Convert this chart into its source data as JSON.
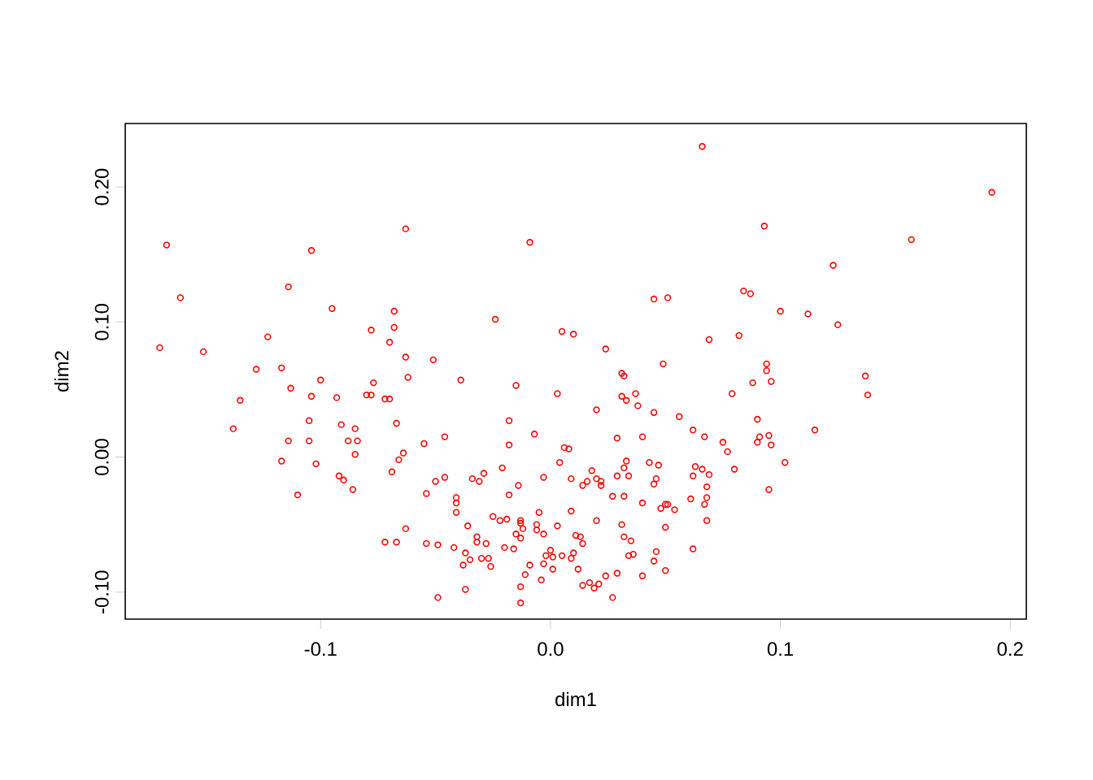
{
  "chart_data": {
    "type": "scatter",
    "xlabel": "dim1",
    "ylabel": "dim2",
    "xlim": [
      -0.185,
      0.207
    ],
    "ylim": [
      -0.12,
      0.247
    ],
    "xticks": [
      {
        "value": -0.1,
        "label": "-0.1"
      },
      {
        "value": 0.0,
        "label": "0.0"
      },
      {
        "value": 0.1,
        "label": "0.1"
      },
      {
        "value": 0.2,
        "label": "0.2"
      }
    ],
    "yticks": [
      {
        "value": -0.1,
        "label": "-0.10"
      },
      {
        "value": 0.0,
        "label": "0.00"
      },
      {
        "value": 0.1,
        "label": "0.10"
      },
      {
        "value": 0.2,
        "label": "0.20"
      }
    ],
    "marker": "circle",
    "grid": false,
    "series": [
      {
        "color": "#ff0000",
        "x": [
          -0.167,
          -0.161,
          -0.17,
          -0.151,
          -0.128,
          -0.117,
          -0.123,
          -0.114,
          -0.104,
          -0.095,
          -0.078,
          -0.068,
          -0.068,
          -0.07,
          -0.063,
          -0.063,
          0.066,
          -0.009,
          0.045,
          0.051,
          -0.024,
          0.005,
          0.01,
          0.024,
          0.069,
          0.049,
          -0.051,
          0.031,
          0.192,
          0.093,
          0.157,
          0.123,
          0.084,
          0.087,
          0.1,
          0.112,
          0.125,
          0.082,
          0.094,
          0.094,
          0.137,
          0.138,
          0.088,
          0.096,
          0.079,
          0.09,
          0.115,
          0.091,
          0.095,
          0.09,
          0.096,
          0.075,
          0.077,
          0.102,
          0.08,
          0.095,
          -0.1,
          -0.077,
          -0.062,
          -0.113,
          -0.104,
          -0.093,
          -0.08,
          -0.078,
          -0.072,
          -0.07,
          -0.135,
          -0.105,
          -0.091,
          -0.085,
          -0.067,
          -0.138,
          -0.114,
          -0.105,
          -0.088,
          -0.084,
          -0.055,
          -0.085,
          -0.064,
          -0.066,
          -0.117,
          -0.102,
          -0.069,
          -0.092,
          -0.09,
          -0.086,
          -0.11,
          -0.054,
          -0.063,
          -0.072,
          -0.067,
          -0.054,
          -0.039,
          0.032,
          -0.015,
          0.003,
          0.031,
          0.033,
          0.037,
          0.038,
          0.02,
          0.045,
          0.056,
          -0.018,
          -0.007,
          -0.046,
          -0.018,
          0.029,
          0.04,
          0.062,
          0.067,
          0.006,
          0.008,
          0.004,
          0.033,
          0.032,
          0.034,
          0.043,
          0.047,
          -0.021,
          -0.05,
          -0.046,
          -0.034,
          -0.031,
          -0.029,
          -0.003,
          0.009,
          0.018,
          0.016,
          0.014,
          0.02,
          0.022,
          0.022,
          0.029,
          0.045,
          0.046,
          0.062,
          0.063,
          0.066,
          0.069,
          0.068,
          -0.041,
          -0.041,
          -0.041,
          -0.018,
          -0.014,
          0.009,
          0.027,
          0.032,
          0.04,
          0.048,
          0.05,
          0.051,
          0.054,
          0.061,
          0.067,
          0.068,
          0.068,
          -0.025,
          -0.022,
          -0.019,
          -0.013,
          -0.013,
          -0.012,
          -0.005,
          -0.006,
          -0.006,
          0.003,
          0.02,
          0.031,
          0.05,
          -0.036,
          -0.015,
          -0.013,
          -0.003,
          0.011,
          0.013,
          0.014,
          0.032,
          0.035,
          -0.032,
          -0.032,
          -0.028,
          -0.049,
          -0.042,
          -0.02,
          -0.016,
          0.0,
          0.062,
          0.046,
          -0.037,
          -0.035,
          -0.03,
          -0.027,
          -0.002,
          0.001,
          0.005,
          0.01,
          0.009,
          0.034,
          0.036,
          0.045,
          -0.038,
          -0.026,
          -0.009,
          -0.003,
          0.001,
          0.012,
          -0.011,
          -0.004,
          0.024,
          0.029,
          0.04,
          0.05,
          0.014,
          0.017,
          0.019,
          0.021,
          -0.037,
          -0.013,
          -0.049,
          -0.013,
          0.027
        ],
        "values": [
          0.157,
          0.118,
          0.081,
          0.078,
          0.065,
          0.066,
          0.089,
          0.126,
          0.153,
          0.11,
          0.094,
          0.108,
          0.096,
          0.085,
          0.074,
          0.169,
          0.23,
          0.159,
          0.117,
          0.118,
          0.102,
          0.093,
          0.091,
          0.08,
          0.087,
          0.069,
          0.072,
          0.062,
          0.196,
          0.171,
          0.161,
          0.142,
          0.123,
          0.121,
          0.108,
          0.106,
          0.098,
          0.09,
          0.069,
          0.064,
          0.06,
          0.046,
          0.055,
          0.056,
          0.047,
          0.028,
          0.02,
          0.015,
          0.016,
          0.011,
          0.009,
          0.011,
          0.004,
          -0.004,
          -0.009,
          -0.024,
          0.057,
          0.055,
          0.059,
          0.051,
          0.045,
          0.044,
          0.046,
          0.046,
          0.043,
          0.043,
          0.042,
          0.027,
          0.024,
          0.021,
          0.025,
          0.021,
          0.012,
          0.012,
          0.012,
          0.012,
          0.01,
          0.002,
          0.003,
          -0.002,
          -0.003,
          -0.005,
          -0.011,
          -0.014,
          -0.017,
          -0.024,
          -0.028,
          -0.027,
          -0.053,
          -0.063,
          -0.063,
          -0.064,
          0.057,
          0.06,
          0.053,
          0.047,
          0.045,
          0.042,
          0.047,
          0.038,
          0.035,
          0.033,
          0.03,
          0.027,
          0.017,
          0.015,
          0.009,
          0.014,
          0.015,
          0.02,
          0.015,
          0.007,
          0.006,
          -0.004,
          -0.003,
          -0.008,
          -0.014,
          -0.004,
          -0.006,
          -0.008,
          -0.018,
          -0.015,
          -0.016,
          -0.018,
          -0.012,
          -0.015,
          -0.016,
          -0.01,
          -0.018,
          -0.021,
          -0.016,
          -0.018,
          -0.021,
          -0.014,
          -0.02,
          -0.016,
          -0.014,
          -0.007,
          -0.009,
          -0.013,
          -0.022,
          -0.03,
          -0.034,
          -0.041,
          -0.028,
          -0.021,
          -0.04,
          -0.029,
          -0.029,
          -0.034,
          -0.038,
          -0.035,
          -0.035,
          -0.039,
          -0.031,
          -0.035,
          -0.03,
          -0.047,
          -0.044,
          -0.047,
          -0.046,
          -0.047,
          -0.049,
          -0.053,
          -0.041,
          -0.05,
          -0.054,
          -0.051,
          -0.047,
          -0.05,
          -0.052,
          -0.051,
          -0.057,
          -0.06,
          -0.057,
          -0.058,
          -0.059,
          -0.064,
          -0.059,
          -0.062,
          -0.059,
          -0.063,
          -0.064,
          -0.065,
          -0.067,
          -0.067,
          -0.068,
          -0.069,
          -0.068,
          -0.07,
          -0.071,
          -0.076,
          -0.075,
          -0.075,
          -0.073,
          -0.074,
          -0.073,
          -0.071,
          -0.075,
          -0.073,
          -0.072,
          -0.077,
          -0.08,
          -0.081,
          -0.08,
          -0.079,
          -0.083,
          -0.083,
          -0.087,
          -0.091,
          -0.088,
          -0.086,
          -0.088,
          -0.084,
          -0.095,
          -0.093,
          -0.097,
          -0.094,
          -0.098,
          -0.096,
          -0.104,
          -0.108,
          -0.104
        ]
      }
    ]
  }
}
